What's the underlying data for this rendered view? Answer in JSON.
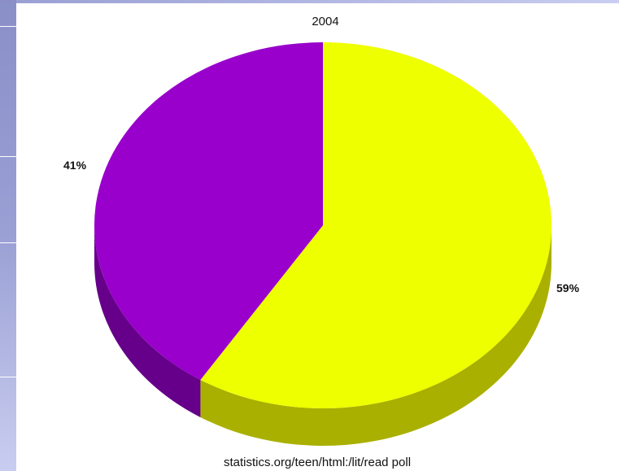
{
  "chart_data": {
    "type": "pie",
    "title": "2004",
    "slices": [
      {
        "label": "59%",
        "value": 59,
        "color": "#eeff00",
        "side_color": "#aab000"
      },
      {
        "label": "41%",
        "value": 41,
        "color": "#9900cc",
        "side_color": "#66008a"
      }
    ]
  },
  "source": "statistics.org/teen/html:/lit/read poll"
}
